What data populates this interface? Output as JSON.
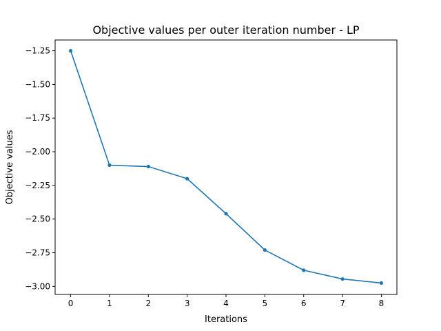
{
  "chart_data": {
    "type": "line",
    "title": "Objective values per outer iteration number - LP",
    "xlabel": "Iterations",
    "ylabel": "Objective values",
    "x": [
      0,
      1,
      2,
      3,
      4,
      5,
      6,
      7,
      8
    ],
    "series": [
      {
        "values": [
          -1.25,
          -2.1,
          -2.11,
          -2.2,
          -2.46,
          -2.73,
          -2.88,
          -2.945,
          -2.975
        ],
        "color": "#1f77b4",
        "marker": "dot"
      }
    ],
    "xlim": [
      -0.4,
      8.4
    ],
    "ylim": [
      -3.06,
      -1.17
    ],
    "xticks": [
      0,
      1,
      2,
      3,
      4,
      5,
      6,
      7,
      8
    ],
    "xtick_labels": [
      "0",
      "1",
      "2",
      "3",
      "4",
      "5",
      "6",
      "7",
      "8"
    ],
    "yticks": [
      -1.25,
      -1.5,
      -1.75,
      -2.0,
      -2.25,
      -2.5,
      -2.75,
      -3.0
    ],
    "ytick_labels": [
      "−1.25",
      "−1.50",
      "−1.75",
      "−2.00",
      "−2.25",
      "−2.50",
      "−2.75",
      "−3.00"
    ],
    "grid": false,
    "legend": "none"
  }
}
